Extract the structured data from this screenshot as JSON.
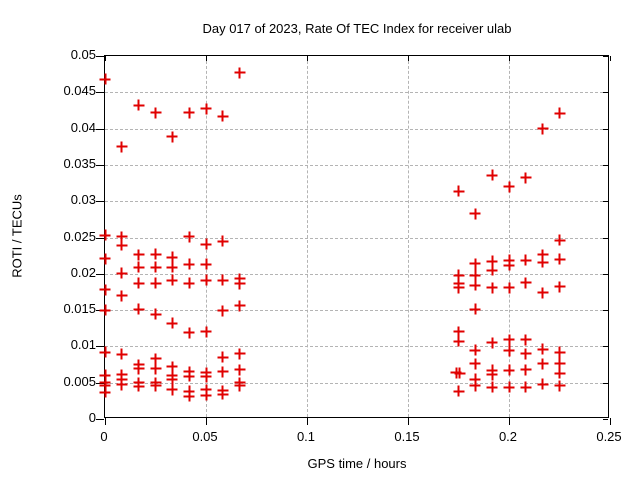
{
  "title": "Day 017 of 2023, Rate Of TEC Index for receiver ulab",
  "chart_data": {
    "type": "scatter",
    "title": "Day 017 of 2023, Rate Of TEC Index for receiver ulab",
    "xlabel": "GPS time / hours",
    "ylabel": "ROTI / TECUs",
    "xlim": [
      0,
      0.25
    ],
    "ylim": [
      0,
      0.05
    ],
    "xtick_values": [
      0,
      0.05,
      0.1,
      0.15,
      0.2,
      0.25
    ],
    "xtick_labels": [
      "0",
      "0.05",
      "0.1",
      "0.15",
      "0.2",
      "0.25"
    ],
    "ytick_values": [
      0,
      0.005,
      0.01,
      0.015,
      0.02,
      0.025,
      0.03,
      0.035,
      0.04,
      0.045,
      0.05
    ],
    "ytick_labels": [
      "0",
      "0.005",
      "0.01",
      "0.015",
      "0.02",
      "0.025",
      "0.03",
      "0.035",
      "0.04",
      "0.045",
      "0.05"
    ],
    "grid": true,
    "legend": "none",
    "marker": "plus",
    "marker_color": "#e00000",
    "grid_color": "#b4b4b4",
    "points": [
      [
        0,
        0.0468
      ],
      [
        0.0083,
        0.0375
      ],
      [
        0.0167,
        0.0432
      ],
      [
        0.025,
        0.0422
      ],
      [
        0.0333,
        0.0389
      ],
      [
        0.0417,
        0.0422
      ],
      [
        0.05,
        0.0427
      ],
      [
        0.0583,
        0.0417
      ],
      [
        0.0667,
        0.0477
      ],
      [
        0,
        0.0253
      ],
      [
        0.0083,
        0.0251
      ],
      [
        0.0083,
        0.0239
      ],
      [
        0.0417,
        0.0251
      ],
      [
        0.05,
        0.0241
      ],
      [
        0.0583,
        0.0245
      ],
      [
        0,
        0.0221
      ],
      [
        0.0167,
        0.0226
      ],
      [
        0.025,
        0.0227
      ],
      [
        0.0333,
        0.0223
      ],
      [
        0.0083,
        0.0201
      ],
      [
        0.0167,
        0.0209
      ],
      [
        0.025,
        0.0209
      ],
      [
        0.0333,
        0.0209
      ],
      [
        0.0417,
        0.0213
      ],
      [
        0.05,
        0.0213
      ],
      [
        0.0167,
        0.0187
      ],
      [
        0.025,
        0.0187
      ],
      [
        0.0333,
        0.0191
      ],
      [
        0.0417,
        0.0187
      ],
      [
        0.05,
        0.0191
      ],
      [
        0.0583,
        0.0191
      ],
      [
        0.0667,
        0.0193
      ],
      [
        0.0667,
        0.0186
      ],
      [
        0,
        0.0178
      ],
      [
        0.0083,
        0.017
      ],
      [
        0,
        0.015
      ],
      [
        0.0167,
        0.0151
      ],
      [
        0.025,
        0.0144
      ],
      [
        0.0333,
        0.0132
      ],
      [
        0.0417,
        0.0119
      ],
      [
        0.05,
        0.012
      ],
      [
        0.0583,
        0.0149
      ],
      [
        0.0667,
        0.0156
      ],
      [
        0,
        0.0092
      ],
      [
        0,
        0.006
      ],
      [
        0,
        0.005
      ],
      [
        0,
        0.0046
      ],
      [
        0,
        0.0037
      ],
      [
        0.0083,
        0.0089
      ],
      [
        0.0083,
        0.0061
      ],
      [
        0.0083,
        0.0055
      ],
      [
        0.0083,
        0.0047
      ],
      [
        0.0167,
        0.0075
      ],
      [
        0.0167,
        0.0069
      ],
      [
        0.0167,
        0.005
      ],
      [
        0.0167,
        0.0045
      ],
      [
        0.025,
        0.0083
      ],
      [
        0.025,
        0.0069
      ],
      [
        0.025,
        0.005
      ],
      [
        0.025,
        0.0046
      ],
      [
        0.0333,
        0.0072
      ],
      [
        0.0333,
        0.006
      ],
      [
        0.0333,
        0.0055
      ],
      [
        0.0333,
        0.004
      ],
      [
        0.0417,
        0.0065
      ],
      [
        0.0417,
        0.0059
      ],
      [
        0.0417,
        0.0038
      ],
      [
        0.0417,
        0.0031
      ],
      [
        0.05,
        0.0064
      ],
      [
        0.05,
        0.0058
      ],
      [
        0.05,
        0.004
      ],
      [
        0.05,
        0.0033
      ],
      [
        0.0583,
        0.0085
      ],
      [
        0.0583,
        0.0065
      ],
      [
        0.0583,
        0.0039
      ],
      [
        0.0583,
        0.0034
      ],
      [
        0.0667,
        0.009
      ],
      [
        0.0667,
        0.0068
      ],
      [
        0.0667,
        0.005
      ],
      [
        0.0667,
        0.0046
      ],
      [
        0.175,
        0.0314
      ],
      [
        0.1833,
        0.0283
      ],
      [
        0.1917,
        0.0336
      ],
      [
        0.2,
        0.032
      ],
      [
        0.2083,
        0.0332
      ],
      [
        0.2167,
        0.04
      ],
      [
        0.225,
        0.0421
      ],
      [
        0.225,
        0.0246
      ],
      [
        0.1833,
        0.0214
      ],
      [
        0.1917,
        0.0217
      ],
      [
        0.1917,
        0.0205
      ],
      [
        0.2,
        0.0219
      ],
      [
        0.2,
        0.0212
      ],
      [
        0.2083,
        0.0219
      ],
      [
        0.2167,
        0.0226
      ],
      [
        0.2167,
        0.0216
      ],
      [
        0.225,
        0.022
      ],
      [
        0.175,
        0.0198
      ],
      [
        0.175,
        0.0187
      ],
      [
        0.175,
        0.0181
      ],
      [
        0.1833,
        0.0198
      ],
      [
        0.1833,
        0.0184
      ],
      [
        0.1917,
        0.0181
      ],
      [
        0.2,
        0.0181
      ],
      [
        0.2083,
        0.0188
      ],
      [
        0.2167,
        0.0174
      ],
      [
        0.225,
        0.0182
      ],
      [
        0.1833,
        0.0151
      ],
      [
        0.175,
        0.012
      ],
      [
        0.175,
        0.0107
      ],
      [
        0.174,
        0.0064
      ],
      [
        0.1757,
        0.0063
      ],
      [
        0.175,
        0.0038
      ],
      [
        0.1833,
        0.0095
      ],
      [
        0.1833,
        0.0076
      ],
      [
        0.1833,
        0.0055
      ],
      [
        0.1833,
        0.0046
      ],
      [
        0.1917,
        0.0105
      ],
      [
        0.1917,
        0.0067
      ],
      [
        0.1917,
        0.0061
      ],
      [
        0.1917,
        0.0044
      ],
      [
        0.2,
        0.0109
      ],
      [
        0.2,
        0.0094
      ],
      [
        0.2,
        0.0067
      ],
      [
        0.2,
        0.0044
      ],
      [
        0.2083,
        0.0109
      ],
      [
        0.2083,
        0.009
      ],
      [
        0.2083,
        0.0068
      ],
      [
        0.2083,
        0.0044
      ],
      [
        0.2167,
        0.0096
      ],
      [
        0.2167,
        0.0076
      ],
      [
        0.2167,
        0.0048
      ],
      [
        0.225,
        0.0092
      ],
      [
        0.225,
        0.0077
      ],
      [
        0.225,
        0.0063
      ],
      [
        0.225,
        0.0046
      ]
    ]
  }
}
